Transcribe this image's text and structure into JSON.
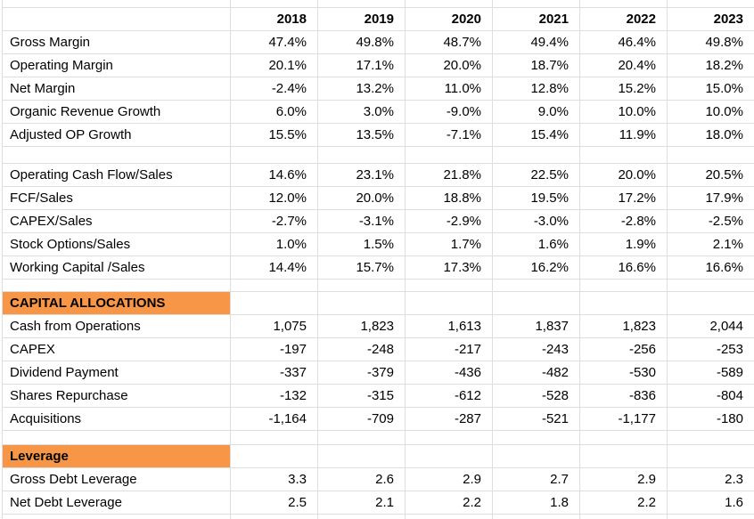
{
  "table": {
    "years": [
      "2018",
      "2019",
      "2020",
      "2021",
      "2022",
      "2023"
    ],
    "sections": [
      {
        "title": "",
        "rows": [
          {
            "label": "Gross Margin",
            "values": [
              "47.4%",
              "49.8%",
              "48.7%",
              "49.4%",
              "46.4%",
              "49.8%"
            ]
          },
          {
            "label": "Operating Margin",
            "values": [
              "20.1%",
              "17.1%",
              "20.0%",
              "18.7%",
              "20.4%",
              "18.2%"
            ]
          },
          {
            "label": "Net Margin",
            "values": [
              "-2.4%",
              "13.2%",
              "11.0%",
              "12.8%",
              "15.2%",
              "15.0%"
            ]
          },
          {
            "label": "Organic Revenue Growth",
            "values": [
              "6.0%",
              "3.0%",
              "-9.0%",
              "9.0%",
              "10.0%",
              "10.0%"
            ]
          },
          {
            "label": "Adjusted OP Growth",
            "values": [
              "15.5%",
              "13.5%",
              "-7.1%",
              "15.4%",
              "11.9%",
              "18.0%"
            ]
          }
        ]
      },
      {
        "title": "",
        "rows": [
          {
            "label": "Operating Cash Flow/Sales",
            "values": [
              "14.6%",
              "23.1%",
              "21.8%",
              "22.5%",
              "20.0%",
              "20.5%"
            ]
          },
          {
            "label": "FCF/Sales",
            "values": [
              "12.0%",
              "20.0%",
              "18.8%",
              "19.5%",
              "17.2%",
              "17.9%"
            ]
          },
          {
            "label": "CAPEX/Sales",
            "values": [
              "-2.7%",
              "-3.1%",
              "-2.9%",
              "-3.0%",
              "-2.8%",
              "-2.5%"
            ]
          },
          {
            "label": "Stock Options/Sales",
            "values": [
              "1.0%",
              "1.5%",
              "1.7%",
              "1.6%",
              "1.9%",
              "2.1%"
            ]
          },
          {
            "label": "Working Capital /Sales",
            "values": [
              "14.4%",
              "15.7%",
              "17.3%",
              "16.2%",
              "16.6%",
              "16.6%"
            ]
          }
        ]
      },
      {
        "title": "CAPITAL ALLOCATIONS",
        "rows": [
          {
            "label": "Cash from Operations",
            "values": [
              "1,075",
              "1,823",
              "1,613",
              "1,837",
              "1,823",
              "2,044"
            ]
          },
          {
            "label": "CAPEX",
            "values": [
              "-197",
              "-248",
              "-217",
              "-243",
              "-256",
              "-253"
            ]
          },
          {
            "label": "Dividend Payment",
            "values": [
              "-337",
              "-379",
              "-436",
              "-482",
              "-530",
              "-589"
            ]
          },
          {
            "label": "Shares Repurchase",
            "values": [
              "-132",
              "-315",
              "-612",
              "-528",
              "-836",
              "-804"
            ]
          },
          {
            "label": "Acquisitions",
            "values": [
              "-1,164",
              "-709",
              "-287",
              "-521",
              "-1,177",
              "-180"
            ]
          }
        ]
      },
      {
        "title": "Leverage",
        "rows": [
          {
            "label": "Gross Debt Leverage",
            "values": [
              "3.3",
              "2.6",
              "2.9",
              "2.7",
              "2.9",
              "2.3"
            ]
          },
          {
            "label": "Net Debt Leverage",
            "values": [
              "2.5",
              "2.1",
              "2.2",
              "1.8",
              "2.2",
              "1.6"
            ]
          }
        ]
      }
    ]
  },
  "colors": {
    "section_header_bg": "#F79646",
    "gridline": "#DEDEDE",
    "text": "#000000",
    "background": "#FFFFFF"
  }
}
